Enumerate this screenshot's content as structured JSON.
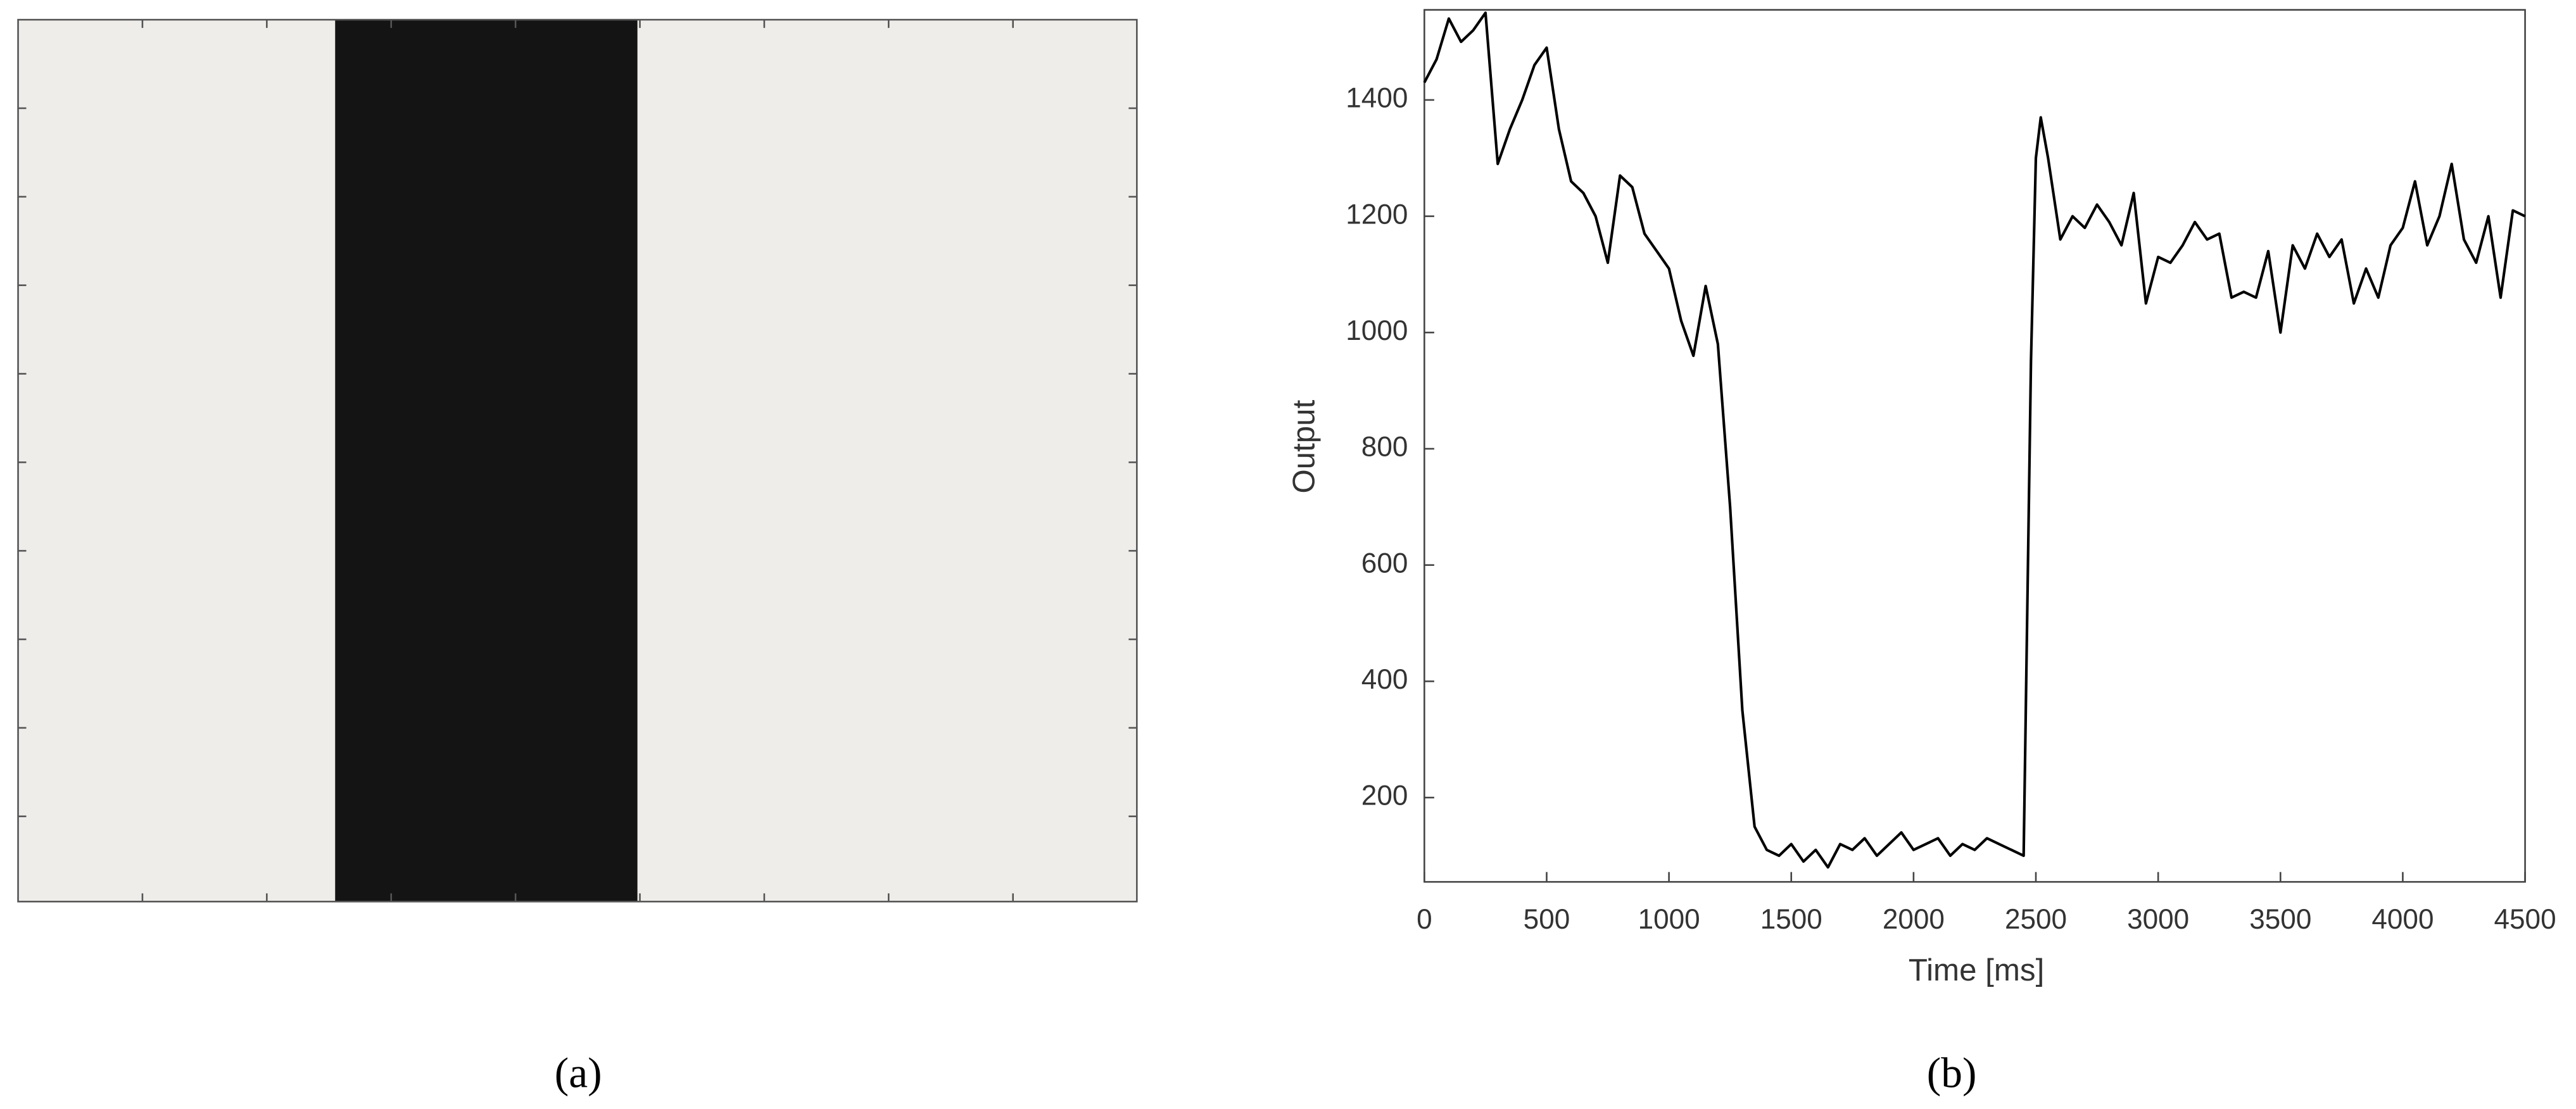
{
  "chart_data": {
    "type": "line",
    "xlabel": "Time [ms]",
    "ylabel": "Output",
    "xlim": [
      0,
      4500
    ],
    "ylim": [
      55,
      1555
    ],
    "xticks": [
      0,
      500,
      1000,
      1500,
      2000,
      2500,
      3000,
      3500,
      4000,
      4500
    ],
    "yticks": [
      200,
      400,
      600,
      800,
      1000,
      1200,
      1400
    ],
    "x": [
      0,
      50,
      100,
      150,
      200,
      250,
      300,
      350,
      400,
      450,
      500,
      550,
      600,
      650,
      700,
      750,
      800,
      850,
      900,
      950,
      1000,
      1050,
      1100,
      1150,
      1200,
      1250,
      1300,
      1350,
      1400,
      1450,
      1500,
      1550,
      1600,
      1650,
      1700,
      1750,
      1800,
      1850,
      1900,
      1950,
      2000,
      2050,
      2100,
      2150,
      2200,
      2250,
      2300,
      2350,
      2400,
      2450,
      2480,
      2500,
      2520,
      2550,
      2600,
      2650,
      2700,
      2750,
      2800,
      2850,
      2900,
      2950,
      3000,
      3050,
      3100,
      3150,
      3200,
      3250,
      3300,
      3350,
      3400,
      3450,
      3500,
      3550,
      3600,
      3650,
      3700,
      3750,
      3800,
      3850,
      3900,
      3950,
      4000,
      4050,
      4100,
      4150,
      4200,
      4250,
      4300,
      4350,
      4400,
      4450,
      4500
    ],
    "values": [
      1430,
      1470,
      1540,
      1500,
      1520,
      1550,
      1290,
      1350,
      1400,
      1460,
      1490,
      1350,
      1260,
      1240,
      1200,
      1120,
      1270,
      1250,
      1170,
      1140,
      1110,
      1020,
      960,
      1080,
      980,
      700,
      350,
      150,
      110,
      100,
      120,
      90,
      110,
      80,
      120,
      110,
      130,
      100,
      120,
      140,
      110,
      120,
      130,
      100,
      120,
      110,
      130,
      120,
      110,
      100,
      950,
      1300,
      1370,
      1300,
      1160,
      1200,
      1180,
      1220,
      1190,
      1150,
      1240,
      1050,
      1130,
      1120,
      1150,
      1190,
      1160,
      1170,
      1060,
      1070,
      1060,
      1140,
      1000,
      1150,
      1110,
      1170,
      1130,
      1160,
      1050,
      1110,
      1060,
      1150,
      1180,
      1260,
      1150,
      1200,
      1290,
      1160,
      1120,
      1200,
      1060,
      1210,
      1200
    ],
    "color": "#000000"
  },
  "panel_labels": [
    "(a)",
    "(b)"
  ]
}
